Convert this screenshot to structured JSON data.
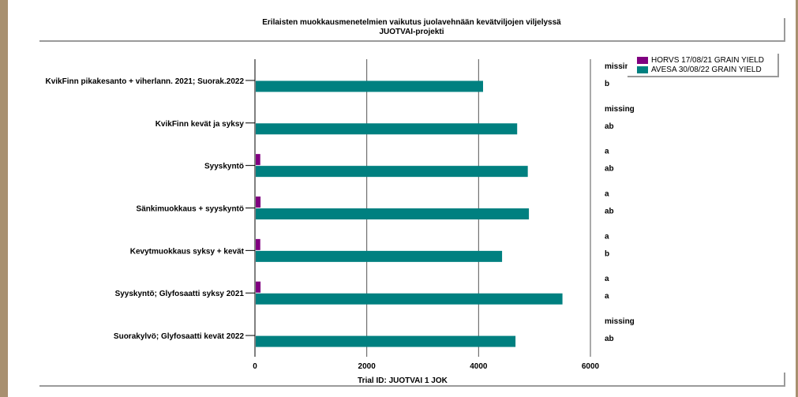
{
  "chart_data": {
    "type": "bar",
    "orientation": "horizontal",
    "title": "Erilaisten muokkausmenetelmien vaikutus juolavehnään kevätviljojen viljelyssä",
    "subtitle": "JUOTVAI-projekti",
    "xlabel": "Trial ID: JUOTVAI 1 JOK",
    "ylabel": "",
    "xlim": [
      0,
      6000
    ],
    "xticks": [
      "0",
      "2000",
      "4000",
      "6000"
    ],
    "grid": true,
    "legend_position": "top-right",
    "categories": [
      "KvikFinn pikakesanto + viherlann. 2021; Suorak.2022",
      "KvikFinn kevät ja syksy",
      "Syyskyntö",
      "Sänkimuokkaus + syyskyntö",
      "Kevytmuokkaus syksy + kevät",
      "Syyskyntö; Glyfosaatti syksy 2021",
      "Suorakylvö; Glyfosaatti kevät 2022"
    ],
    "series": [
      {
        "name": "HORVS 17/08/21 GRAIN YIELD",
        "color": "#800080",
        "values": [
          null,
          null,
          95,
          100,
          95,
          100,
          null
        ],
        "significance": [
          "missing",
          "missing",
          "a",
          "a",
          "a",
          "a",
          "missing"
        ]
      },
      {
        "name": "AVESA 30/08/22 GRAIN YIELD",
        "color": "#008080",
        "values": [
          4080,
          4690,
          4880,
          4900,
          4420,
          5500,
          4660
        ],
        "significance": [
          "b",
          "ab",
          "ab",
          "ab",
          "b",
          "a",
          "ab"
        ]
      }
    ]
  }
}
